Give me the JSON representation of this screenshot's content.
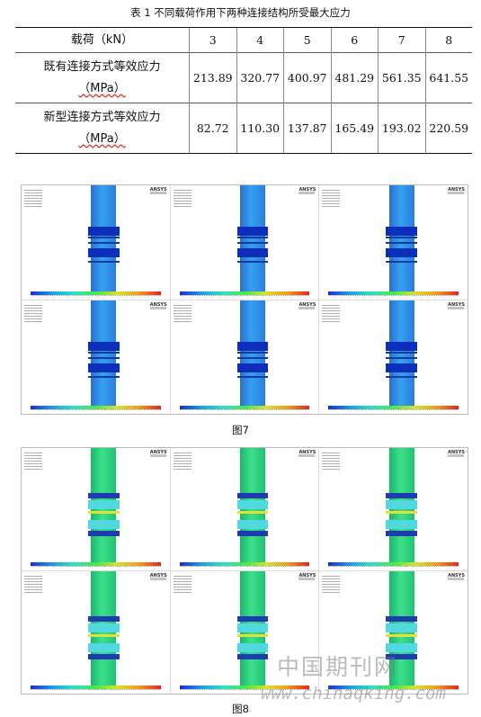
{
  "table": {
    "caption": "表 1  不同载荷作用下两种连接结构所受最大应力",
    "header": {
      "load_label": "载荷（kN）",
      "loads": [
        "3",
        "4",
        "5",
        "6",
        "7",
        "8"
      ]
    },
    "rows": [
      {
        "label": "既有连接方式等效应力",
        "unit": "（MPa）",
        "values": [
          "213.89",
          "320.77",
          "400.97",
          "481.29",
          "561.35",
          "641.55"
        ]
      },
      {
        "label": "新型连接方式等效应力",
        "unit": "（MPa）",
        "values": [
          "82.72",
          "110.30",
          "137.87",
          "165.49",
          "193.02",
          "220.59"
        ]
      }
    ]
  },
  "figures": [
    {
      "id": "fig7",
      "label": "图7",
      "panel_badge": "ANSYS",
      "colormap": "blue"
    },
    {
      "id": "fig8",
      "label": "图8",
      "panel_badge": "ANSYS",
      "colormap": "green"
    }
  ],
  "watermark": {
    "cn": "中国期刊网",
    "url": "www.chinaqking.com"
  }
}
